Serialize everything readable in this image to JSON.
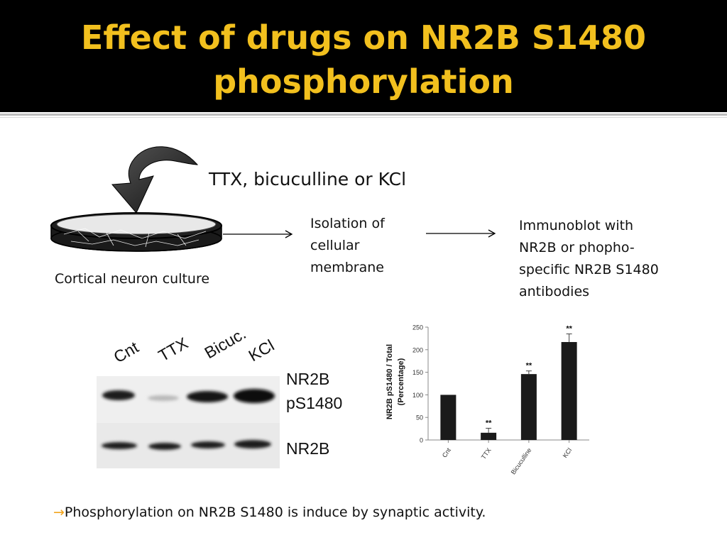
{
  "slide": {
    "title_line1": "Effect of drugs on NR2B S1480",
    "title_line2": "phosphorylation"
  },
  "workflow": {
    "treatment": "TTX, bicuculline or KCl",
    "culture_label": "Cortical neuron culture",
    "step_isolation": [
      "Isolation of",
      "cellular",
      "membrane"
    ],
    "step_immunoblot": [
      "Immunoblot with",
      "NR2B or phopho-",
      "specific NR2B S1480",
      "antibodies"
    ]
  },
  "blot": {
    "lane_labels": [
      "Cnt",
      "TTX",
      "Bicuc.",
      "KCl"
    ],
    "row_label_phospho": [
      "NR2B",
      "pS1480"
    ],
    "row_label_total": "NR2B"
  },
  "footer": {
    "arrow_glyph": "→",
    "text": "Phosphorylation on NR2B S1480 is induce by synaptic activity."
  },
  "chart_data": {
    "type": "bar",
    "categories": [
      "Cnt",
      "TTX",
      "Bicuculline",
      "KCl"
    ],
    "values": [
      100,
      16,
      146,
      217
    ],
    "errors": [
      0,
      10,
      7,
      18
    ],
    "significance": [
      "",
      "**",
      "**",
      "**"
    ],
    "ylabel_line1": "NR2B pS1480 / Total",
    "ylabel_line2": "(Percentage)",
    "ylim": [
      0,
      250
    ],
    "yticks": [
      0,
      50,
      100,
      150,
      200,
      250
    ],
    "grid": false,
    "bar_color": "#1a1a1a"
  },
  "colors": {
    "title": "#f2c01e",
    "title_bg": "#000000",
    "footer_arrow": "#f2a51e"
  }
}
